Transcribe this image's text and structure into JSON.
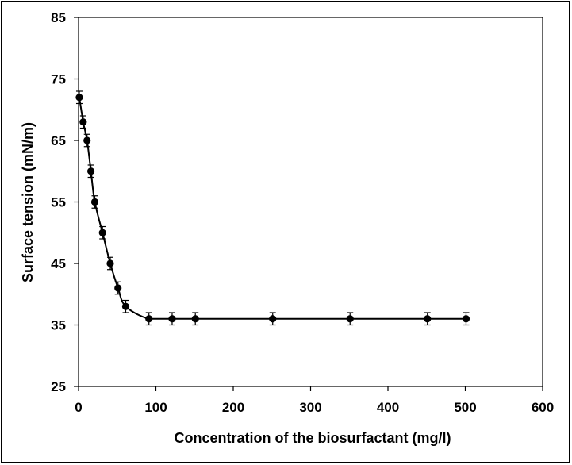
{
  "chart_data": {
    "type": "scatter",
    "title": "",
    "xlabel": "Concentration of the biosurfactant (mg/l)",
    "ylabel": "Surface tension (mN/m)",
    "xlim": [
      0,
      600
    ],
    "ylim": [
      25,
      85
    ],
    "xticks": [
      0,
      100,
      200,
      300,
      400,
      500,
      600
    ],
    "yticks": [
      25,
      35,
      45,
      55,
      65,
      75,
      85
    ],
    "xtick_labels": [
      "0",
      "100",
      "200",
      "300",
      "400",
      "500",
      "600"
    ],
    "ytick_labels": [
      "25",
      "35",
      "45",
      "55",
      "65",
      "75",
      "85"
    ],
    "grid": false,
    "legend": "none",
    "marker_color": "#000000",
    "series": [
      {
        "x": [
          1,
          6,
          11,
          16,
          21,
          31,
          41,
          51,
          61,
          91,
          121,
          151,
          251,
          351,
          451,
          501
        ],
        "y": [
          72,
          68,
          65,
          60,
          55,
          50,
          45,
          41,
          38,
          36,
          36,
          36,
          36,
          36,
          36,
          36
        ],
        "error": [
          1,
          1,
          1,
          1,
          1,
          1,
          1,
          1,
          1,
          1,
          1,
          1,
          1,
          1,
          1,
          1
        ]
      }
    ]
  }
}
